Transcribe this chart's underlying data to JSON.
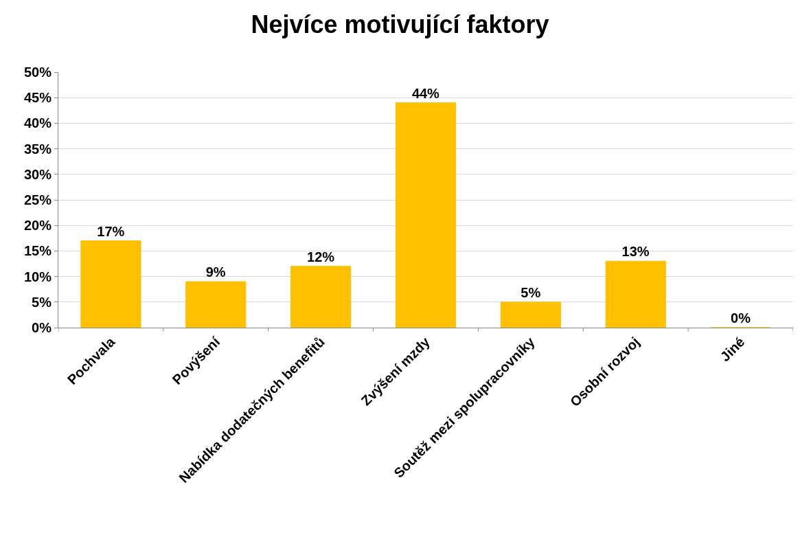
{
  "chart_data": {
    "type": "bar",
    "title": "Nejvíce motivující faktory",
    "categories": [
      "Pochvala",
      "Povýšení",
      "Nabídka dodatečných benefitů",
      "Zvýšení mzdy",
      "Soutěž mezi spolupracovníky",
      "Osobní rozvoj",
      "Jiné"
    ],
    "values": [
      17,
      9,
      12,
      44,
      5,
      13,
      0
    ],
    "value_labels": [
      "17%",
      "9%",
      "12%",
      "44%",
      "5%",
      "13%",
      "0%"
    ],
    "color": "#ffc000",
    "ylim": [
      0,
      50
    ],
    "yticks": [
      {
        "value": 0,
        "label": "0%"
      },
      {
        "value": 5,
        "label": "5%"
      },
      {
        "value": 10,
        "label": "10%"
      },
      {
        "value": 15,
        "label": "15%"
      },
      {
        "value": 20,
        "label": "20%"
      },
      {
        "value": 25,
        "label": "25%"
      },
      {
        "value": 30,
        "label": "30%"
      },
      {
        "value": 35,
        "label": "35%"
      },
      {
        "value": 40,
        "label": "40%"
      },
      {
        "value": 45,
        "label": "45%"
      },
      {
        "value": 50,
        "label": "50%"
      }
    ],
    "grid": "y"
  }
}
